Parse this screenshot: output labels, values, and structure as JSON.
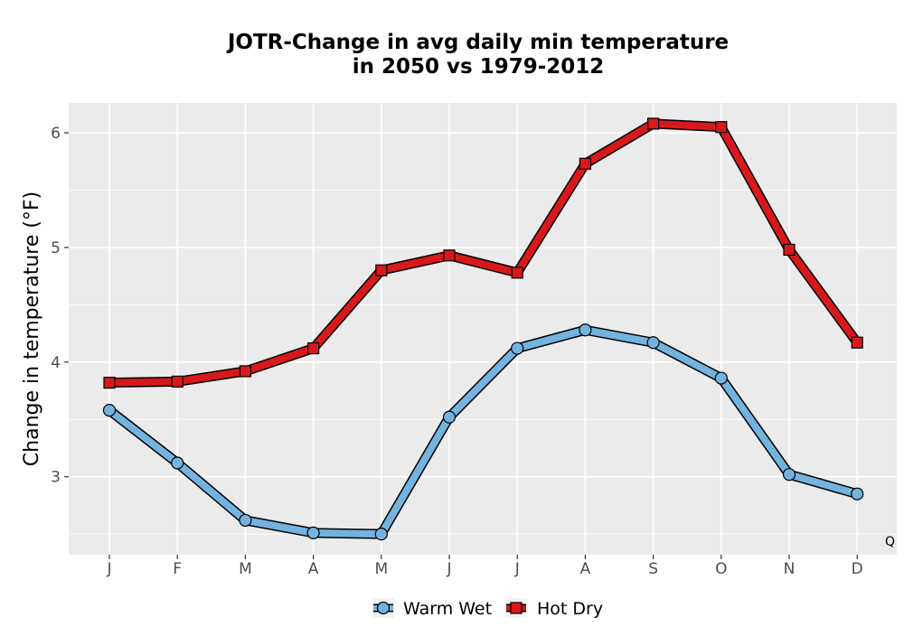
{
  "chart_data": {
    "type": "line",
    "title_line1": "JOTR-Change in avg daily min temperature",
    "title_line2": "in 2050 vs 1979-2012",
    "xlabel": "",
    "ylabel": "Change in temperature (°F)",
    "categories": [
      "J",
      "F",
      "M",
      "A",
      "M",
      "J",
      "J",
      "A",
      "S",
      "O",
      "N",
      "D"
    ],
    "ylim": [
      2.32,
      6.26
    ],
    "yticks": [
      3,
      4,
      5,
      6
    ],
    "grid": true,
    "legend_position": "bottom",
    "corner_label": "Q",
    "series": [
      {
        "name": "Warm Wet",
        "color": "#74b3e0",
        "marker": "circle",
        "values": [
          3.58,
          3.12,
          2.62,
          2.51,
          2.5,
          3.52,
          4.12,
          4.28,
          4.17,
          3.86,
          3.02,
          2.85
        ]
      },
      {
        "name": "Hot Dry",
        "color": "#d7191c",
        "marker": "square",
        "values": [
          3.82,
          3.83,
          3.92,
          4.12,
          4.8,
          4.93,
          4.78,
          5.73,
          6.08,
          6.05,
          4.98,
          4.17
        ]
      }
    ]
  }
}
